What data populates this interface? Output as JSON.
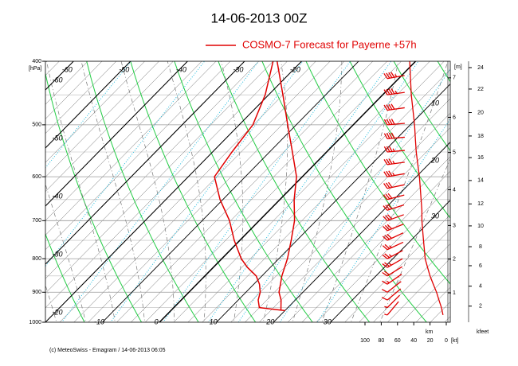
{
  "chart_data": {
    "type": "emagram",
    "title": "14-06-2013  00Z",
    "legend": {
      "name": "COSMO-7 Forecast for Payerne   +57h",
      "color": "#e00000"
    },
    "ylabel": "[hPa]",
    "log_y": true,
    "ylim": [
      1000,
      400
    ],
    "yticks": [
      400,
      500,
      600,
      700,
      800,
      900,
      1000
    ],
    "xlim": [
      -20,
      51
    ],
    "isotherm_ticks_bottom": [
      -10,
      0,
      10,
      20,
      30
    ],
    "isotherm_ticks_top": [
      -60,
      -50,
      -40,
      -30,
      -20
    ],
    "isotherm_ticks_left": [
      -60,
      -50,
      -40,
      -30,
      -20
    ],
    "side_labels": [
      10,
      20,
      30
    ],
    "series": [
      {
        "color": "#e00000",
        "pressure": [
          960,
          925,
          900,
          850,
          800,
          750,
          700,
          650,
          600,
          550,
          500,
          450,
          400
        ],
        "values": [
          19.3,
          17.5,
          15.8,
          13.5,
          11.5,
          9,
          6.2,
          2.5,
          -1,
          -6,
          -11.5,
          -17.5,
          -24.3
        ]
      },
      {
        "color": "#e00000",
        "pressure": [
          960,
          950,
          925,
          900,
          875,
          850,
          825,
          800,
          750,
          700,
          650,
          600,
          550,
          500,
          450,
          400
        ],
        "values": [
          20,
          15,
          13.5,
          12.5,
          11,
          9,
          6,
          3.4,
          -1,
          -5.2,
          -10.5,
          -15.4,
          -16.6,
          -17.6,
          -20.6,
          -25
        ]
      }
    ],
    "wind": {
      "color": "#e00000",
      "xlabel": "[kt]",
      "xlim": [
        100,
        0
      ],
      "xticks": [
        100,
        80,
        60,
        40,
        20,
        0
      ],
      "pressure": [
        400,
        425,
        450,
        475,
        500,
        525,
        550,
        575,
        600,
        625,
        650,
        675,
        700,
        725,
        750,
        775,
        800,
        825,
        850,
        875,
        900,
        925,
        950,
        975
      ],
      "speed": [
        45,
        44,
        43,
        41,
        39,
        38,
        37,
        35,
        33,
        32,
        31,
        30,
        30,
        29,
        28,
        27,
        26,
        23,
        20,
        16,
        12,
        9,
        6,
        4
      ],
      "direction": [
        260,
        260,
        262,
        262,
        265,
        265,
        265,
        262,
        260,
        258,
        255,
        252,
        250,
        248,
        245,
        245,
        242,
        240,
        238,
        235,
        232,
        230,
        225,
        220
      ]
    },
    "km_axis": {
      "title": "[m]",
      "label": "km",
      "ticks": [
        7,
        6,
        5,
        4,
        3,
        2,
        1
      ],
      "pressure": [
        424,
        487,
        551,
        628,
        712,
        801,
        902
      ]
    },
    "kfeet_axis": {
      "label": "kfeet",
      "ticks": [
        24,
        22,
        20,
        18,
        16,
        14,
        12,
        10,
        8,
        6,
        4,
        2
      ],
      "pressure": [
        409,
        441,
        479,
        520,
        561,
        608,
        660,
        713,
        767,
        820,
        881,
        945
      ]
    },
    "footer": "(c) MeteoSwiss - Emagram  /  14-06-2013  06:05"
  }
}
